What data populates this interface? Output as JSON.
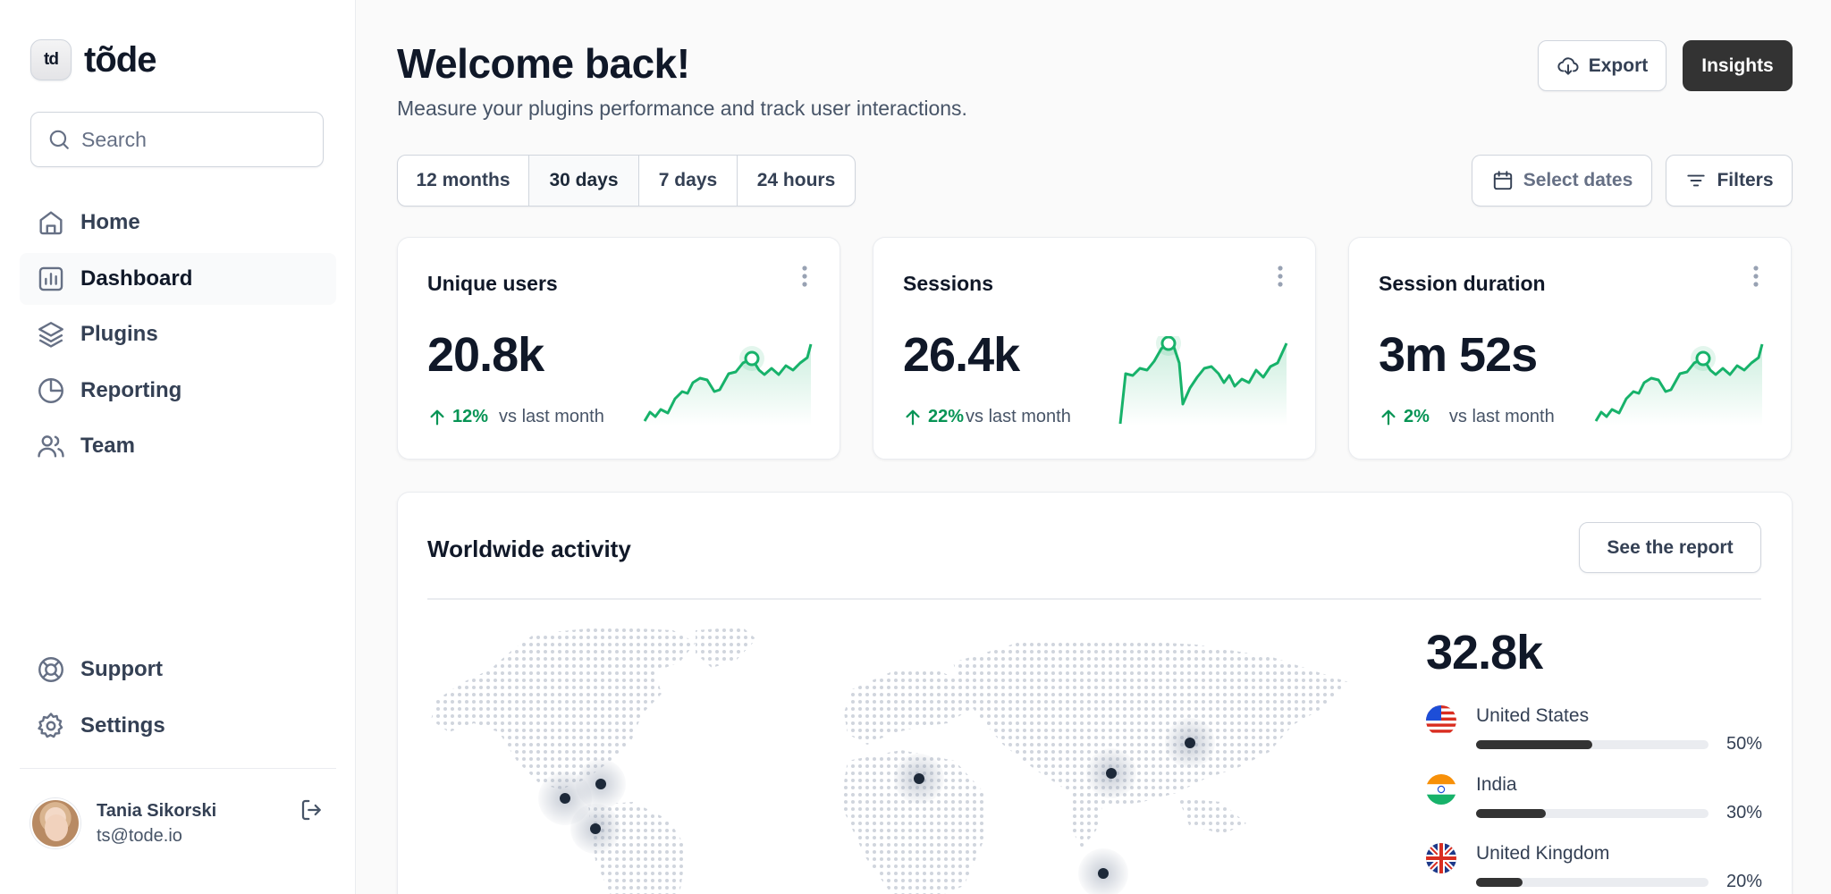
{
  "app": {
    "logo_mark": "td",
    "logo_text": "tõde"
  },
  "search": {
    "placeholder": "Search"
  },
  "nav": {
    "top": [
      {
        "label": "Home",
        "icon": "home-icon"
      },
      {
        "label": "Dashboard",
        "icon": "bar-chart-icon",
        "active": true
      },
      {
        "label": "Plugins",
        "icon": "layers-icon"
      },
      {
        "label": "Reporting",
        "icon": "pie-chart-icon"
      },
      {
        "label": "Team",
        "icon": "users-icon"
      }
    ],
    "bottom": [
      {
        "label": "Support",
        "icon": "life-buoy-icon"
      },
      {
        "label": "Settings",
        "icon": "gear-icon"
      }
    ]
  },
  "user": {
    "name": "Tania Sikorski",
    "email": "ts@tode.io"
  },
  "header": {
    "title": "Welcome back!",
    "subtitle": "Measure your plugins performance and track user interactions.",
    "export_label": "Export",
    "insights_label": "Insights"
  },
  "ranges": [
    {
      "label": "12 months",
      "active": false
    },
    {
      "label": "30 days",
      "active": true
    },
    {
      "label": "7 days",
      "active": false
    },
    {
      "label": "24 hours",
      "active": false
    }
  ],
  "toolbar": {
    "select_dates_label": "Select dates",
    "filters_label": "Filters"
  },
  "metrics": [
    {
      "title": "Unique users",
      "value": "20.8k",
      "change": "12%",
      "compare": "vs last month"
    },
    {
      "title": "Sessions",
      "value": "26.4k",
      "change": "22%",
      "compare": "vs last month"
    },
    {
      "title": "Session duration",
      "value": "3m 52s",
      "change": "2%",
      "compare": "vs last month"
    }
  ],
  "activity": {
    "title": "Worldwide activity",
    "report_label": "See the report",
    "total": "32.8k",
    "countries": [
      {
        "name": "United States",
        "percent": "50%",
        "share": 0.5
      },
      {
        "name": "India",
        "percent": "30%",
        "share": 0.3
      },
      {
        "name": "United Kingdom",
        "percent": "20%",
        "share": 0.2
      }
    ]
  },
  "colors": {
    "accent_green": "#079455",
    "dark_button": "#333333",
    "bar_fill": "#333333"
  }
}
